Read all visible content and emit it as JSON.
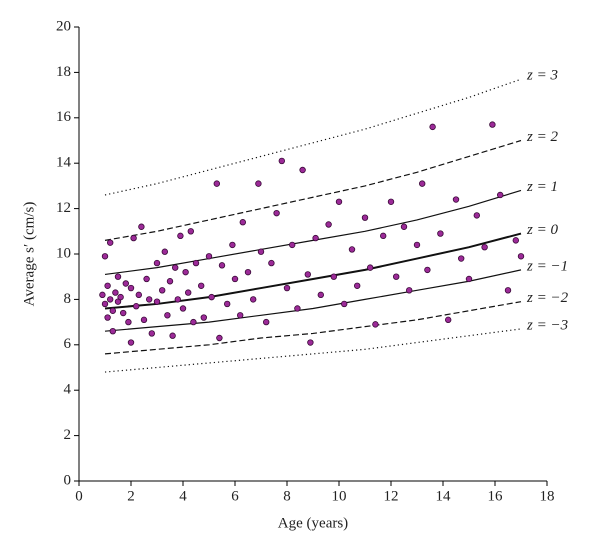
{
  "chart_data": {
    "type": "scatter",
    "x_label": "Age (years)",
    "y_label": "Average s′ (cm/s)",
    "xlim": [
      0,
      18
    ],
    "xticks": [
      0,
      2,
      4,
      6,
      8,
      10,
      12,
      14,
      16,
      18
    ],
    "ylim": [
      0,
      20
    ],
    "yticks": [
      0,
      2,
      4,
      6,
      8,
      10,
      12,
      14,
      16,
      18,
      20
    ],
    "points": {
      "color": "#9c2a98",
      "x": [
        0.9,
        1.0,
        1.0,
        1.1,
        1.1,
        1.2,
        1.2,
        1.3,
        1.3,
        1.4,
        1.5,
        1.5,
        1.6,
        1.7,
        1.8,
        1.9,
        2.0,
        2.0,
        2.1,
        2.2,
        2.3,
        2.4,
        2.5,
        2.6,
        2.7,
        2.8,
        3.0,
        3.0,
        3.2,
        3.3,
        3.4,
        3.5,
        3.6,
        3.7,
        3.8,
        3.9,
        4.0,
        4.1,
        4.2,
        4.3,
        4.4,
        4.5,
        4.7,
        4.8,
        5.0,
        5.1,
        5.3,
        5.4,
        5.5,
        5.7,
        5.9,
        6.0,
        6.2,
        6.3,
        6.5,
        6.7,
        6.9,
        7.0,
        7.2,
        7.4,
        7.6,
        7.8,
        8.0,
        8.2,
        8.4,
        8.6,
        8.8,
        8.9,
        9.1,
        9.3,
        9.6,
        9.8,
        10.0,
        10.2,
        10.5,
        10.7,
        11.0,
        11.2,
        11.4,
        11.7,
        12.0,
        12.2,
        12.5,
        12.7,
        13.0,
        13.2,
        13.4,
        13.6,
        13.9,
        14.2,
        14.5,
        14.7,
        15.0,
        15.3,
        15.6,
        15.9,
        16.2,
        16.5,
        16.8,
        17.0
      ],
      "values": [
        8.2,
        9.9,
        7.8,
        8.6,
        7.2,
        8.0,
        10.5,
        7.5,
        6.6,
        8.3,
        7.9,
        9.0,
        8.1,
        7.4,
        8.7,
        7.0,
        8.5,
        6.1,
        10.7,
        7.7,
        8.2,
        11.2,
        7.1,
        8.9,
        8.0,
        6.5,
        9.6,
        7.9,
        8.4,
        10.1,
        7.3,
        8.8,
        6.4,
        9.4,
        8.0,
        10.8,
        7.6,
        9.2,
        8.3,
        11.0,
        7.0,
        9.6,
        8.6,
        7.2,
        9.9,
        8.1,
        13.1,
        6.3,
        9.5,
        7.8,
        10.4,
        8.9,
        7.3,
        11.4,
        9.2,
        8.0,
        13.1,
        10.1,
        7.0,
        9.6,
        11.8,
        14.1,
        8.5,
        10.4,
        7.6,
        13.7,
        9.1,
        6.1,
        10.7,
        8.2,
        11.3,
        9.0,
        12.3,
        7.8,
        10.2,
        8.6,
        11.6,
        9.4,
        6.9,
        10.8,
        12.3,
        9.0,
        11.2,
        8.4,
        10.4,
        13.1,
        9.3,
        15.6,
        10.9,
        7.1,
        12.4,
        9.8,
        8.9,
        11.7,
        10.3,
        15.7,
        12.6,
        8.4,
        10.6,
        9.9
      ]
    },
    "curve_x": [
      1,
      3,
      5,
      7,
      9,
      11,
      13,
      15,
      17
    ],
    "curves": [
      {
        "name": "z = 3",
        "style": "dotted",
        "values": [
          12.6,
          13.1,
          13.7,
          14.3,
          14.9,
          15.5,
          16.2,
          16.9,
          17.7
        ]
      },
      {
        "name": "z = 2",
        "style": "dashed",
        "values": [
          10.6,
          11.0,
          11.5,
          12.0,
          12.5,
          13.0,
          13.6,
          14.3,
          15.0
        ]
      },
      {
        "name": "z = 1",
        "style": "solid",
        "values": [
          9.1,
          9.4,
          9.8,
          10.2,
          10.6,
          11.0,
          11.5,
          12.1,
          12.8
        ]
      },
      {
        "name": "z = 0",
        "style": "bold",
        "values": [
          7.6,
          7.8,
          8.1,
          8.5,
          8.9,
          9.3,
          9.8,
          10.3,
          10.9
        ]
      },
      {
        "name": "z = −1",
        "style": "solid",
        "values": [
          6.6,
          6.8,
          7.0,
          7.3,
          7.6,
          8.0,
          8.4,
          8.8,
          9.3
        ]
      },
      {
        "name": "z = −2",
        "style": "dashed",
        "values": [
          5.6,
          5.8,
          6.0,
          6.3,
          6.5,
          6.8,
          7.1,
          7.5,
          7.9
        ]
      },
      {
        "name": "z = −3",
        "style": "dotted",
        "values": [
          4.8,
          5.0,
          5.2,
          5.4,
          5.6,
          5.8,
          6.1,
          6.4,
          6.7
        ]
      }
    ]
  }
}
